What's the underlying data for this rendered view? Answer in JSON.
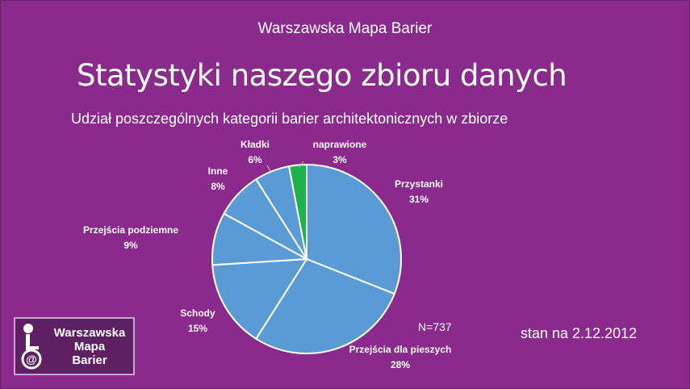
{
  "header": {
    "text": "Warszawska Mapa Barier"
  },
  "title": "Statystyki naszego zbioru danych",
  "subtitle": "Udział poszczególnych kategorii barier architektonicznych w zbiorze",
  "n_label": "N=737",
  "date_label": "stan na 2.12.2012",
  "logo": {
    "line1": "Warszawska",
    "line2": "Mapa",
    "line3": "Barier"
  },
  "chart_data": {
    "type": "pie",
    "slices": [
      {
        "label": "Przystanki",
        "value": 31,
        "value_label": "31%",
        "color": "#5b9bd5"
      },
      {
        "label": "Przejścia dla pieszych",
        "value": 28,
        "value_label": "28%",
        "color": "#5b9bd5"
      },
      {
        "label": "Schody",
        "value": 15,
        "value_label": "15%",
        "color": "#5b9bd5"
      },
      {
        "label": "Przejścia podziemne",
        "value": 9,
        "value_label": "9%",
        "color": "#5b9bd5"
      },
      {
        "label": "Inne",
        "value": 8,
        "value_label": "8%",
        "color": "#5b9bd5"
      },
      {
        "label": "Kładki",
        "value": 6,
        "value_label": "6%",
        "color": "#5b9bd5"
      },
      {
        "label": "naprawione",
        "value": 3,
        "value_label": "3%",
        "color": "#1fb24a"
      }
    ],
    "start": "12 o'clock, clockwise"
  },
  "colors": {
    "background": "#8a2a8c",
    "slice": "#5b9bd5",
    "highlight": "#1fb24a"
  }
}
